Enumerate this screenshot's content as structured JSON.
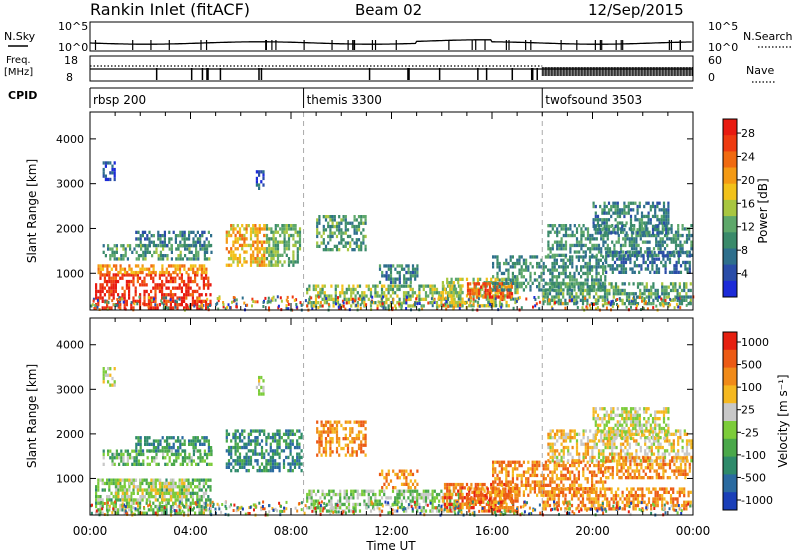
{
  "header": {
    "station": "Rankin Inlet (fitACF)",
    "beam": "Beam 02",
    "date": "12/Sep/2015"
  },
  "summary": {
    "nsky_label": "N.Sky",
    "nsearch_label": "N.Search",
    "nsky_ticks": [
      "10^5",
      "10^0"
    ],
    "nsearch_ticks": [
      "10^5",
      "10^0"
    ],
    "freq_label_1": "Freq.",
    "freq_label_2": "[MHz]",
    "freq_ticks": [
      "18",
      "8"
    ],
    "nave_label": "Nave",
    "nave_ticks": [
      "60",
      "0"
    ],
    "cpid_label": "CPID",
    "cpid_segments": [
      {
        "label": "rbsp 200",
        "start_hour": 0.0
      },
      {
        "label": "themis 3300",
        "start_hour": 8.5
      },
      {
        "label": "twofsound 3503",
        "start_hour": 18.0
      }
    ]
  },
  "chart_data": [
    {
      "type": "heatmap",
      "name": "power",
      "ylabel": "Slant Range [km]",
      "xlim": [
        0,
        24
      ],
      "ylim": [
        180,
        4600
      ],
      "yticks": [
        "1000",
        "2000",
        "3000",
        "4000"
      ],
      "xticks": [
        "00:00",
        "04:00",
        "08:00",
        "12:00",
        "16:00",
        "20:00",
        "00:00"
      ],
      "colorbar": {
        "label": "Power [dB]",
        "ticks": [
          "4",
          "8",
          "12",
          "16",
          "20",
          "24",
          "28"
        ],
        "colors": [
          "#1c2bd8",
          "#2a4da8",
          "#2e6f8c",
          "#3a8a6a",
          "#5ea86a",
          "#a8c640",
          "#f2c21a",
          "#f49a14",
          "#f06a10",
          "#ee3a10",
          "#e81a10"
        ]
      },
      "regions": [
        {
          "t0": 0.2,
          "t1": 4.8,
          "r0": 250,
          "r1": 1000,
          "level": 9.5
        },
        {
          "t0": 0.3,
          "t1": 4.6,
          "r0": 1000,
          "r1": 1200,
          "level": 7
        },
        {
          "t0": 0.5,
          "t1": 4.8,
          "r0": 1350,
          "r1": 1650,
          "level": 3.5
        },
        {
          "t0": 1.8,
          "t1": 4.8,
          "r0": 1650,
          "r1": 1950,
          "level": 2.5
        },
        {
          "t0": 5.4,
          "t1": 7.0,
          "r0": 1200,
          "r1": 2100,
          "level": 6.5
        },
        {
          "t0": 7.0,
          "t1": 8.4,
          "r0": 1200,
          "r1": 2100,
          "level": 4
        },
        {
          "t0": 0.5,
          "t1": 1.0,
          "r0": 3100,
          "r1": 3500,
          "level": 1
        },
        {
          "t0": 6.6,
          "t1": 6.9,
          "r0": 2900,
          "r1": 3300,
          "level": 1.5
        },
        {
          "t0": 8.6,
          "t1": 14.8,
          "r0": 250,
          "r1": 750,
          "level": 4.5
        },
        {
          "t0": 9.0,
          "t1": 11.0,
          "r0": 1500,
          "r1": 2300,
          "level": 3.5
        },
        {
          "t0": 11.5,
          "t1": 13.0,
          "r0": 800,
          "r1": 1200,
          "level": 2.5
        },
        {
          "t0": 14.0,
          "t1": 17.0,
          "r0": 300,
          "r1": 900,
          "level": 5
        },
        {
          "t0": 15.0,
          "t1": 16.8,
          "r0": 500,
          "r1": 800,
          "level": 8.5
        },
        {
          "t0": 16.0,
          "t1": 20.5,
          "r0": 600,
          "r1": 1400,
          "level": 3
        },
        {
          "t0": 18.0,
          "t1": 23.9,
          "r0": 300,
          "r1": 800,
          "level": 3.5
        },
        {
          "t0": 18.2,
          "t1": 23.9,
          "r0": 1400,
          "r1": 2100,
          "level": 3
        },
        {
          "t0": 20.0,
          "t1": 23.0,
          "r0": 1900,
          "r1": 2600,
          "level": 2.5
        },
        {
          "t0": 20.5,
          "t1": 23.9,
          "r0": 1000,
          "r1": 1500,
          "level": 2
        }
      ]
    },
    {
      "type": "heatmap",
      "name": "velocity",
      "ylabel": "Slant Range [km]",
      "xlabel": "Time UT",
      "xlim": [
        0,
        24
      ],
      "ylim": [
        180,
        4600
      ],
      "yticks": [
        "1000",
        "2000",
        "3000",
        "4000"
      ],
      "xticks": [
        "00:00",
        "04:00",
        "08:00",
        "12:00",
        "16:00",
        "20:00",
        "00:00"
      ],
      "colorbar": {
        "label": "Velocity [m s⁻¹]",
        "ticks": [
          "1000",
          "500",
          "100",
          "25",
          "-25",
          "-100",
          "-500",
          "-1000"
        ],
        "colors": [
          "#1a3fb8",
          "#2a6aa0",
          "#2e8a6a",
          "#4aa84a",
          "#7ccc3a",
          "#c8c8c8",
          "#f5b820",
          "#f08a18",
          "#ec5a14",
          "#e62010"
        ]
      },
      "regions": [
        {
          "t0": 0.2,
          "t1": 4.8,
          "r0": 250,
          "r1": 1000,
          "level": 3.5
        },
        {
          "t0": 1.0,
          "t1": 4.0,
          "r0": 500,
          "r1": 1000,
          "level": 5
        },
        {
          "t0": 0.5,
          "t1": 4.8,
          "r0": 1350,
          "r1": 1650,
          "level": 3.5
        },
        {
          "t0": 1.8,
          "t1": 4.8,
          "r0": 1650,
          "r1": 1950,
          "level": 2
        },
        {
          "t0": 5.4,
          "t1": 8.4,
          "r0": 1200,
          "r1": 2100,
          "level": 2
        },
        {
          "t0": 0.5,
          "t1": 1.0,
          "r0": 3100,
          "r1": 3500,
          "level": 5
        },
        {
          "t0": 6.6,
          "t1": 6.9,
          "r0": 2900,
          "r1": 3300,
          "level": 5
        },
        {
          "t0": 8.6,
          "t1": 14.8,
          "r0": 250,
          "r1": 750,
          "level": 4
        },
        {
          "t0": 9.0,
          "t1": 11.0,
          "r0": 1500,
          "r1": 2300,
          "level": 7
        },
        {
          "t0": 11.5,
          "t1": 13.0,
          "r0": 800,
          "r1": 1200,
          "level": 7
        },
        {
          "t0": 14.0,
          "t1": 17.0,
          "r0": 300,
          "r1": 900,
          "level": 7.5
        },
        {
          "t0": 15.0,
          "t1": 16.8,
          "r0": 500,
          "r1": 800,
          "level": 7.5
        },
        {
          "t0": 16.0,
          "t1": 20.5,
          "r0": 600,
          "r1": 1400,
          "level": 7
        },
        {
          "t0": 18.0,
          "t1": 23.9,
          "r0": 300,
          "r1": 800,
          "level": 7
        },
        {
          "t0": 18.2,
          "t1": 23.9,
          "r0": 1400,
          "r1": 2100,
          "level": 5.5
        },
        {
          "t0": 20.0,
          "t1": 23.0,
          "r0": 1900,
          "r1": 2600,
          "level": 5
        },
        {
          "t0": 20.5,
          "t1": 23.9,
          "r0": 1000,
          "r1": 1500,
          "level": 7
        }
      ]
    }
  ]
}
